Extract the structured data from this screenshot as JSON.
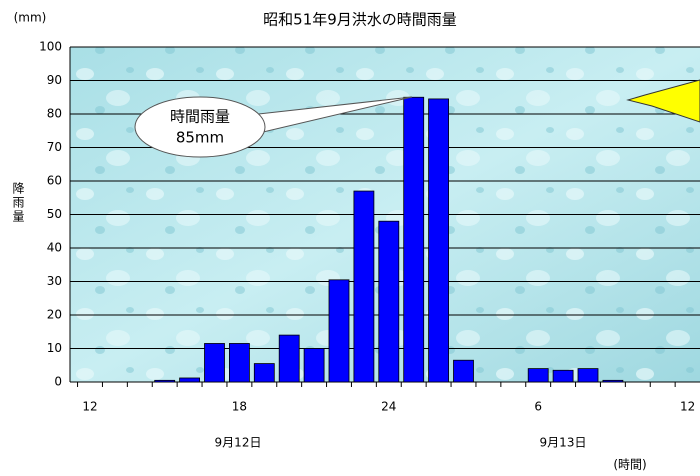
{
  "chart_data": {
    "type": "bar",
    "title": "昭和51年9月洪水の時間雨量",
    "y_unit_label": "(mm)",
    "y_axis_label": "降雨量",
    "x_unit_label": "(時間)",
    "categories": [
      "12",
      null,
      null,
      null,
      null,
      null,
      "18",
      null,
      null,
      null,
      null,
      null,
      "24",
      null,
      null,
      null,
      null,
      null,
      "6",
      null,
      null,
      null,
      null,
      null,
      "12"
    ],
    "values": [
      null,
      null,
      null,
      0.5,
      1.2,
      11.5,
      11.5,
      5.5,
      14,
      10,
      30.5,
      57,
      48,
      85,
      84.5,
      6.5,
      null,
      null,
      4,
      3.5,
      4,
      0.5,
      null,
      null,
      null
    ],
    "x_group_labels": [
      "9月12日",
      "9月13日"
    ],
    "annotation": [
      "時間雨量",
      "85mm"
    ],
    "color": "#0000ff",
    "ylim": [
      0,
      100
    ],
    "yticks": [
      0,
      10,
      20,
      30,
      40,
      50,
      60,
      70,
      80,
      90,
      100
    ],
    "grid": true
  }
}
